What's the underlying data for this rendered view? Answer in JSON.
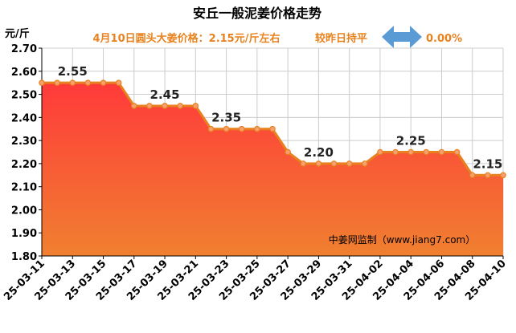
{
  "chart_data": {
    "type": "area",
    "title": "安丘一般泥姜价格走势",
    "subtitle": "4月10日圆头大姜价格：2.15元/斤左右",
    "trend_text": "较昨日持平",
    "change_text": "0.00%",
    "ylabel": "元/斤",
    "ylim": [
      1.8,
      2.7
    ],
    "y_ticks": [
      "2.70",
      "2.60",
      "2.50",
      "2.40",
      "2.30",
      "2.20",
      "2.10",
      "2.00",
      "1.90",
      "1.80"
    ],
    "x_tick_labels": [
      "25-03-11",
      "25-03-13",
      "25-03-15",
      "25-03-17",
      "25-03-19",
      "25-03-21",
      "25-03-23",
      "25-03-25",
      "25-03-27",
      "25-03-29",
      "25-03-31",
      "25-04-02",
      "25-04-04",
      "25-04-06",
      "25-04-08",
      "25-04-10"
    ],
    "x": [
      "25-03-11",
      "25-03-12",
      "25-03-13",
      "25-03-14",
      "25-03-15",
      "25-03-16",
      "25-03-17",
      "25-03-18",
      "25-03-19",
      "25-03-20",
      "25-03-21",
      "25-03-22",
      "25-03-23",
      "25-03-24",
      "25-03-25",
      "25-03-26",
      "25-03-27",
      "25-03-28",
      "25-03-29",
      "25-03-30",
      "25-03-31",
      "25-04-01",
      "25-04-02",
      "25-04-03",
      "25-04-04",
      "25-04-05",
      "25-04-06",
      "25-04-07",
      "25-04-08",
      "25-04-09",
      "25-04-10"
    ],
    "values": [
      2.55,
      2.55,
      2.55,
      2.55,
      2.55,
      2.55,
      2.45,
      2.45,
      2.45,
      2.45,
      2.45,
      2.35,
      2.35,
      2.35,
      2.35,
      2.35,
      2.25,
      2.2,
      2.2,
      2.2,
      2.2,
      2.2,
      2.25,
      2.25,
      2.25,
      2.25,
      2.25,
      2.25,
      2.15,
      2.15,
      2.15
    ],
    "annotations": [
      {
        "x": "25-03-13",
        "label": "2.55",
        "value": 2.55
      },
      {
        "x": "25-03-19",
        "label": "2.45",
        "value": 2.45
      },
      {
        "x": "25-03-23",
        "label": "2.35",
        "value": 2.35
      },
      {
        "x": "25-03-29",
        "label": "2.20",
        "value": 2.2
      },
      {
        "x": "25-04-04",
        "label": "2.25",
        "value": 2.25
      },
      {
        "x": "25-04-09",
        "label": "2.15",
        "value": 2.15
      }
    ],
    "watermark": "中姜网监制（www.jiang7.com）",
    "grid": true,
    "colors": {
      "fill_top": "#ff3a3a",
      "fill_bottom": "#f08030",
      "line": "#e8821f",
      "marker": "#f5a070",
      "title": "#000000",
      "subtitle": "#e8821f",
      "arrow": "#5b9bd5",
      "grid": "#cccccc"
    }
  }
}
